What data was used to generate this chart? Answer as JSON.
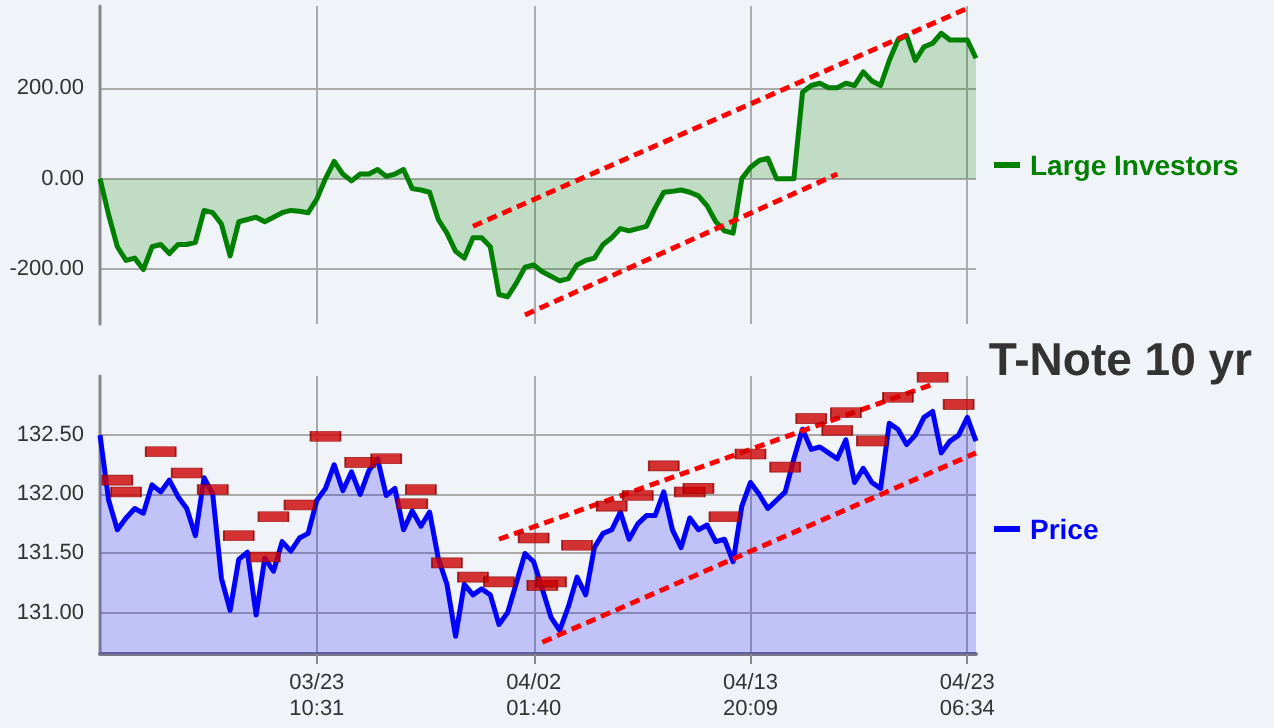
{
  "chart_data": [
    {
      "type": "area",
      "categories": [
        null,
        null,
        null,
        null,
        null,
        null,
        null,
        null,
        null,
        null,
        null,
        null,
        null,
        null,
        null,
        null,
        null,
        null,
        null,
        null,
        null,
        null,
        null,
        null,
        null,
        null,
        null,
        null,
        null,
        null,
        null,
        null,
        null,
        null,
        null,
        null,
        null,
        null,
        null,
        null,
        null,
        null,
        null,
        null,
        null,
        null,
        null,
        null,
        null,
        null,
        null,
        null,
        null,
        null,
        null,
        null,
        null,
        null,
        null,
        null,
        null,
        null,
        null,
        null,
        null,
        null,
        null,
        null,
        null,
        null,
        null,
        null,
        null,
        null,
        null,
        null,
        null,
        null,
        null,
        null,
        null,
        null,
        null,
        null,
        null,
        null,
        null,
        null,
        null,
        null,
        null,
        null,
        null,
        null,
        null,
        null,
        null,
        null,
        null,
        null,
        null,
        null
      ],
      "ylim": [
        -320,
        380
      ],
      "yticks": [
        {
          "value": -200,
          "label": "-200.00"
        },
        {
          "value": 0,
          "label": "0.00"
        },
        {
          "value": 200,
          "label": "200.00"
        }
      ],
      "tick_labels": "y",
      "grid": true,
      "legend": "right",
      "series": [
        {
          "name": "Large Investors",
          "color": "#008000",
          "marker": "none",
          "values": [
            0,
            -80,
            -150,
            -180,
            -175,
            -200,
            -150,
            -145,
            -165,
            -145,
            -145,
            -140,
            -70,
            -75,
            -100,
            -170,
            -95,
            -90,
            -85,
            -95,
            -85,
            -75,
            -70,
            -72,
            -75,
            -45,
            0,
            38,
            10,
            -5,
            10,
            10,
            20,
            5,
            10,
            20,
            -22,
            -25,
            -30,
            -90,
            -120,
            -160,
            -175,
            -130,
            -130,
            -150,
            -255,
            -260,
            -230,
            -195,
            -190,
            -205,
            -215,
            -225,
            -220,
            -190,
            -180,
            -175,
            -145,
            -130,
            -110,
            -115,
            -110,
            -105,
            -65,
            -30,
            -28,
            -25,
            -30,
            -38,
            -60,
            -95,
            -115,
            -120,
            0,
            25,
            40,
            45,
            0,
            0,
            0,
            190,
            205,
            210,
            200,
            200,
            210,
            205,
            235,
            215,
            205,
            260,
            305,
            315,
            260,
            290,
            298,
            320,
            305,
            305,
            305,
            265
          ]
        },
        {
          "type": "line",
          "color": "#ff0000",
          "marker": "none",
          "line_style": "dashed",
          "values": [
            null,
            null,
            null,
            null,
            null,
            null,
            null,
            null,
            null,
            null,
            null,
            null,
            null,
            null,
            null,
            null,
            null,
            null,
            null,
            null,
            null,
            null,
            null,
            null,
            null,
            null,
            null,
            null,
            null,
            null,
            null,
            null,
            null,
            null,
            null,
            null,
            null,
            null,
            null,
            null,
            null,
            null,
            null,
            -105,
            null,
            null,
            null,
            null,
            null,
            null,
            null,
            null,
            null,
            null,
            null,
            null,
            null,
            null,
            null,
            null,
            null,
            null,
            null,
            null,
            null,
            null,
            null,
            null,
            null,
            null,
            null,
            null,
            null,
            null,
            null,
            null,
            null,
            null,
            null,
            null,
            null,
            null,
            null,
            null,
            null,
            null,
            null,
            null,
            null,
            null,
            null,
            null,
            null,
            null,
            null,
            null,
            null,
            null,
            null,
            null,
            375,
            null
          ]
        },
        {
          "type": "line",
          "color": "#ff0000",
          "marker": "none",
          "line_style": "dashed",
          "values": [
            null,
            null,
            null,
            null,
            null,
            null,
            null,
            null,
            null,
            null,
            null,
            null,
            null,
            null,
            null,
            null,
            null,
            null,
            null,
            null,
            null,
            null,
            null,
            null,
            null,
            null,
            null,
            null,
            null,
            null,
            null,
            null,
            null,
            null,
            null,
            null,
            null,
            null,
            null,
            null,
            null,
            null,
            null,
            null,
            null,
            null,
            null,
            null,
            null,
            -300,
            null,
            null,
            null,
            null,
            null,
            null,
            null,
            null,
            null,
            null,
            null,
            null,
            null,
            null,
            null,
            null,
            null,
            null,
            null,
            null,
            null,
            null,
            null,
            null,
            null,
            null,
            null,
            null,
            null,
            null,
            null,
            null,
            null,
            null,
            null,
            10,
            null,
            null,
            null,
            null,
            null,
            null,
            null,
            null,
            null,
            null,
            null,
            null,
            null,
            null,
            null,
            null
          ]
        }
      ]
    },
    {
      "type": "area",
      "title": "T-Note 10 yr",
      "categories": [
        null,
        null,
        null,
        null,
        null,
        null,
        null,
        null,
        null,
        null,
        null,
        null,
        null,
        null,
        null,
        null,
        null,
        null,
        null,
        null,
        null,
        null,
        null,
        null,
        null,
        "03/23 10:31",
        null,
        null,
        null,
        null,
        null,
        null,
        null,
        null,
        null,
        null,
        null,
        null,
        null,
        null,
        null,
        null,
        null,
        null,
        null,
        null,
        null,
        null,
        null,
        null,
        "04/02 01:40",
        null,
        null,
        null,
        null,
        null,
        null,
        null,
        null,
        null,
        null,
        null,
        null,
        null,
        null,
        null,
        null,
        null,
        null,
        null,
        null,
        null,
        null,
        null,
        null,
        "04/13 20:09",
        null,
        null,
        null,
        null,
        null,
        null,
        null,
        null,
        null,
        null,
        null,
        null,
        null,
        null,
        null,
        null,
        null,
        null,
        null,
        null,
        null,
        null,
        null,
        null,
        "04/23 06:34",
        null
      ],
      "ylim": [
        130.65,
        133
      ],
      "yticks": [
        {
          "value": 131,
          "label": "131.00"
        },
        {
          "value": 131.5,
          "label": "131.50"
        },
        {
          "value": 132,
          "label": "132.00"
        },
        {
          "value": 132.5,
          "label": "132.50"
        }
      ],
      "grid": true,
      "legend": "right",
      "series": [
        {
          "name": "Price",
          "color": "#0000ff",
          "marker": "none",
          "values": [
            132.5,
            131.95,
            131.7,
            131.8,
            131.88,
            131.84,
            132.08,
            132.02,
            132.12,
            131.98,
            131.88,
            131.65,
            132.14,
            132.0,
            131.29,
            131.02,
            131.45,
            131.51,
            130.98,
            131.46,
            131.35,
            131.6,
            131.52,
            131.63,
            131.67,
            131.95,
            132.05,
            132.25,
            132.03,
            132.19,
            132.0,
            132.2,
            132.3,
            131.99,
            132.05,
            131.7,
            131.86,
            131.73,
            131.85,
            131.46,
            131.24,
            130.8,
            131.24,
            131.15,
            131.2,
            131.15,
            130.9,
            131.0,
            131.25,
            131.5,
            131.43,
            131.2,
            130.96,
            130.85,
            131.05,
            131.3,
            131.15,
            131.55,
            131.67,
            131.7,
            131.85,
            131.62,
            131.75,
            131.82,
            131.82,
            132.02,
            131.7,
            131.55,
            131.8,
            131.7,
            131.74,
            131.6,
            131.62,
            131.43,
            131.9,
            132.1,
            132.0,
            131.88,
            131.95,
            132.02,
            132.3,
            132.55,
            132.38,
            132.4,
            132.35,
            132.3,
            132.46,
            132.1,
            132.22,
            132.1,
            132.05,
            132.6,
            132.55,
            132.42,
            132.5,
            132.65,
            132.7,
            132.35,
            132.45,
            132.5,
            132.65,
            132.45
          ]
        },
        {
          "type": "scatter",
          "color": "#cc0000",
          "marker": "square",
          "values": [
            null,
            null,
            132.12,
            132.02,
            null,
            null,
            null,
            132.36,
            null,
            null,
            132.18,
            null,
            null,
            132.04,
            null,
            null,
            131.65,
            null,
            null,
            131.47,
            131.81,
            null,
            null,
            131.91,
            null,
            null,
            132.49,
            null,
            null,
            null,
            132.27,
            null,
            null,
            132.3,
            null,
            null,
            131.92,
            132.04,
            null,
            null,
            131.42,
            null,
            null,
            131.3,
            null,
            null,
            131.26,
            null,
            null,
            null,
            131.63,
            131.23,
            131.26,
            null,
            null,
            131.57,
            null,
            null,
            null,
            131.9,
            null,
            null,
            131.99,
            null,
            null,
            132.24,
            null,
            null,
            132.02,
            132.05,
            null,
            null,
            131.81,
            null,
            null,
            132.34,
            null,
            null,
            null,
            132.23,
            null,
            null,
            132.64,
            null,
            null,
            132.54,
            132.69,
            null,
            null,
            132.45,
            null,
            null,
            132.82,
            null,
            null,
            null,
            132.99,
            null,
            null,
            132.76,
            null,
            null
          ]
        },
        {
          "type": "line",
          "color": "#ff0000",
          "marker": "none",
          "line_style": "dashed",
          "values": [
            null,
            null,
            null,
            null,
            null,
            null,
            null,
            null,
            null,
            null,
            null,
            null,
            null,
            null,
            null,
            null,
            null,
            null,
            null,
            null,
            null,
            null,
            null,
            null,
            null,
            null,
            null,
            null,
            null,
            null,
            null,
            null,
            null,
            null,
            null,
            null,
            null,
            null,
            null,
            null,
            null,
            null,
            null,
            null,
            null,
            null,
            131.62,
            null,
            null,
            null,
            null,
            null,
            null,
            null,
            null,
            null,
            null,
            null,
            null,
            null,
            null,
            null,
            null,
            null,
            null,
            null,
            null,
            null,
            null,
            null,
            null,
            null,
            null,
            null,
            null,
            null,
            null,
            null,
            null,
            null,
            null,
            null,
            null,
            null,
            null,
            null,
            null,
            null,
            null,
            null,
            null,
            null,
            null,
            null,
            null,
            null,
            132.93,
            null,
            null,
            null,
            null,
            null
          ]
        },
        {
          "type": "line",
          "color": "#ff0000",
          "marker": "none",
          "line_style": "dashed",
          "values": [
            null,
            null,
            null,
            null,
            null,
            null,
            null,
            null,
            null,
            null,
            null,
            null,
            null,
            null,
            null,
            null,
            null,
            null,
            null,
            null,
            null,
            null,
            null,
            null,
            null,
            null,
            null,
            null,
            null,
            null,
            null,
            null,
            null,
            null,
            null,
            null,
            null,
            null,
            null,
            null,
            null,
            null,
            null,
            null,
            null,
            null,
            null,
            null,
            null,
            null,
            null,
            130.75,
            null,
            null,
            null,
            null,
            null,
            null,
            null,
            null,
            null,
            null,
            null,
            null,
            null,
            null,
            null,
            null,
            null,
            null,
            null,
            null,
            null,
            null,
            null,
            null,
            null,
            null,
            null,
            null,
            null,
            null,
            null,
            null,
            null,
            null,
            null,
            null,
            null,
            null,
            null,
            null,
            null,
            null,
            null,
            null,
            null,
            null,
            null,
            null,
            null,
            132.35
          ]
        }
      ]
    }
  ]
}
